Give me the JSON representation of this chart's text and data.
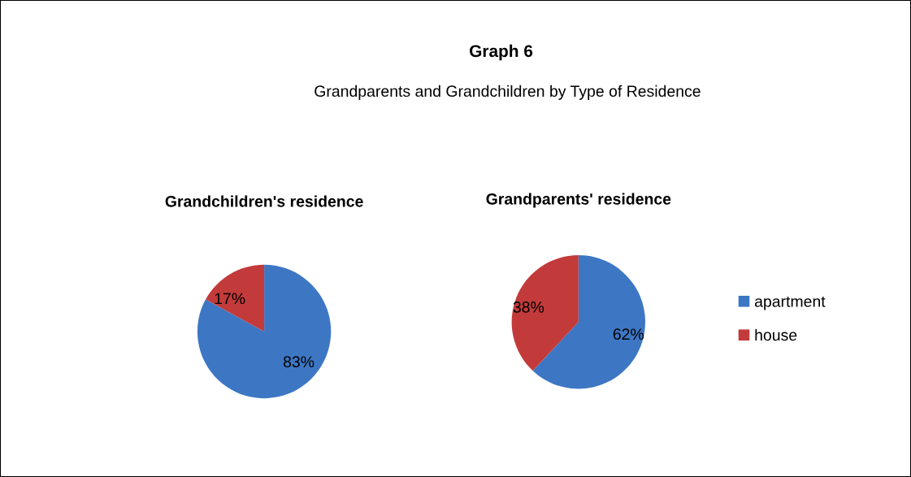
{
  "chart_data": [
    {
      "type": "other",
      "title": "Graph 6",
      "subtitle": "Grandparents and Grandchildren by Type of Residence"
    },
    {
      "type": "pie",
      "title": "Grandchildren's residence",
      "categories": [
        "apartment",
        "house"
      ],
      "values": [
        83,
        17
      ],
      "colors": [
        "#3d77c4",
        "#c23b3a"
      ],
      "value_labels": [
        "83%",
        "17%"
      ],
      "legend": "right"
    },
    {
      "type": "pie",
      "title": "Grandparents' residence",
      "categories": [
        null,
        null
      ],
      "values": [
        62,
        38
      ],
      "colors": [
        "#3d77c4",
        "#c23b3a"
      ],
      "value_labels": [
        "62%",
        "38%"
      ]
    }
  ]
}
